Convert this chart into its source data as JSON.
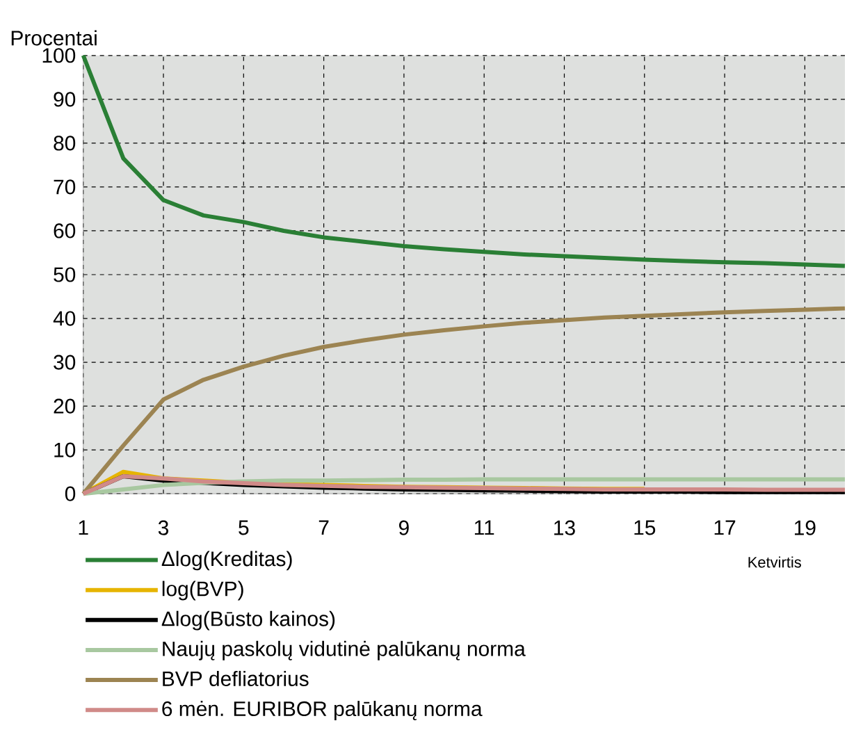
{
  "chart_data": {
    "type": "line",
    "ylabel": "Procentai",
    "xlabel": "Ketvirtis",
    "x": [
      1,
      2,
      3,
      4,
      5,
      6,
      7,
      8,
      9,
      10,
      11,
      12,
      13,
      14,
      15,
      16,
      17,
      18,
      19,
      20
    ],
    "xlim": [
      1,
      20
    ],
    "ylim": [
      0,
      100
    ],
    "xticks": [
      1,
      3,
      5,
      7,
      9,
      11,
      13,
      15,
      17,
      19
    ],
    "yticks": [
      0,
      10,
      20,
      30,
      40,
      50,
      60,
      70,
      80,
      90,
      100
    ],
    "grid": true,
    "legend": "bottom",
    "line_style": "solid",
    "marker": "none",
    "series": [
      {
        "name": "Δlog(Kreditas)",
        "color": "#2a7f35",
        "values": [
          100,
          76.5,
          67,
          63.5,
          62,
          60,
          58.5,
          57.5,
          56.5,
          55.8,
          55.2,
          54.6,
          54.2,
          53.8,
          53.4,
          53.1,
          52.8,
          52.6,
          52.3,
          52
        ]
      },
      {
        "name": "log(BVP)",
        "color": "#e6b400",
        "values": [
          0,
          5,
          3.5,
          3,
          2.5,
          2.2,
          2,
          1.8,
          1.6,
          1.5,
          1.4,
          1.3,
          1.2,
          1.1,
          1.1,
          null,
          null,
          null,
          null,
          null
        ]
      },
      {
        "name": "Δlog(Būsto kainos)",
        "color": "#000000",
        "values": [
          0,
          4,
          3,
          2.5,
          2,
          1.7,
          1.4,
          1.2,
          1,
          0.9,
          0.8,
          0.7,
          0.6,
          0.5,
          0.5,
          0.5,
          0.4,
          0.4,
          0.4,
          0.4
        ]
      },
      {
        "name": "Naujų paskolų vidutinė palūkanų norma",
        "color": "#a8c8a0",
        "values": [
          0,
          1,
          2,
          2.5,
          2.8,
          3,
          3,
          3.1,
          3.2,
          3.2,
          3.3,
          3.3,
          3.3,
          3.3,
          3.3,
          3.3,
          3.3,
          3.3,
          3.3,
          3.3
        ]
      },
      {
        "name": "BVP defliatorius",
        "color": "#9c8452",
        "values": [
          0,
          11,
          21.5,
          26,
          29,
          31.5,
          33.5,
          35,
          36.3,
          37.3,
          38.2,
          39,
          39.6,
          40.2,
          40.6,
          41,
          41.4,
          41.7,
          42,
          42.3
        ]
      },
      {
        "name": "6 mėn. EURIBOR palūkanų norma",
        "color": "#d08a88",
        "values": [
          0,
          4,
          3.5,
          2.8,
          2.4,
          2,
          1.8,
          1.6,
          1.5,
          1.4,
          1.3,
          1.2,
          1.1,
          1,
          1,
          1,
          1,
          0.9,
          0.9,
          0.9
        ]
      }
    ]
  }
}
